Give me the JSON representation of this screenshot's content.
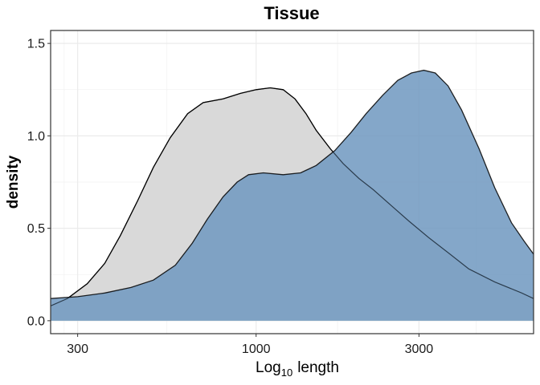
{
  "chart_data": {
    "type": "area",
    "title": "Tissue",
    "xlabel_main": "Log",
    "xlabel_sub": "10",
    "xlabel_rest": "length",
    "ylabel": "density",
    "x_scale": "log10",
    "xlim": [
      250,
      6500
    ],
    "ylim": [
      -0.07,
      1.57
    ],
    "x_ticks": [
      300,
      1000,
      3000
    ],
    "x_tick_labels": [
      "300",
      "1000",
      "3000"
    ],
    "y_ticks": [
      0.0,
      0.5,
      1.0,
      1.5
    ],
    "y_tick_labels": [
      "0.0",
      "0.5",
      "1.0",
      "1.5"
    ],
    "grid": true,
    "series": [
      {
        "fill": "#d9d9d9",
        "fill_opacity": 1,
        "stroke": "#000000",
        "points": [
          [
            250,
            0.08
          ],
          [
            280,
            0.12
          ],
          [
            320,
            0.2
          ],
          [
            360,
            0.31
          ],
          [
            400,
            0.46
          ],
          [
            450,
            0.65
          ],
          [
            500,
            0.83
          ],
          [
            560,
            0.99
          ],
          [
            630,
            1.12
          ],
          [
            700,
            1.18
          ],
          [
            800,
            1.2
          ],
          [
            900,
            1.23
          ],
          [
            1000,
            1.25
          ],
          [
            1100,
            1.26
          ],
          [
            1200,
            1.25
          ],
          [
            1300,
            1.2
          ],
          [
            1400,
            1.12
          ],
          [
            1500,
            1.03
          ],
          [
            1650,
            0.93
          ],
          [
            1800,
            0.85
          ],
          [
            2000,
            0.77
          ],
          [
            2200,
            0.71
          ],
          [
            2500,
            0.62
          ],
          [
            2800,
            0.54
          ],
          [
            3200,
            0.45
          ],
          [
            3700,
            0.36
          ],
          [
            4200,
            0.28
          ],
          [
            5000,
            0.21
          ],
          [
            6000,
            0.15
          ],
          [
            6500,
            0.12
          ]
        ]
      },
      {
        "fill": "#6f98c0",
        "fill_opacity": 0.85,
        "stroke": "#000000",
        "points": [
          [
            250,
            0.12
          ],
          [
            300,
            0.13
          ],
          [
            360,
            0.15
          ],
          [
            430,
            0.18
          ],
          [
            500,
            0.22
          ],
          [
            580,
            0.3
          ],
          [
            650,
            0.42
          ],
          [
            720,
            0.55
          ],
          [
            800,
            0.67
          ],
          [
            880,
            0.75
          ],
          [
            950,
            0.79
          ],
          [
            1050,
            0.8
          ],
          [
            1200,
            0.79
          ],
          [
            1350,
            0.8
          ],
          [
            1500,
            0.84
          ],
          [
            1700,
            0.92
          ],
          [
            1900,
            1.02
          ],
          [
            2100,
            1.12
          ],
          [
            2350,
            1.22
          ],
          [
            2600,
            1.3
          ],
          [
            2850,
            1.34
          ],
          [
            3100,
            1.355
          ],
          [
            3350,
            1.34
          ],
          [
            3650,
            1.27
          ],
          [
            4000,
            1.14
          ],
          [
            4500,
            0.93
          ],
          [
            5000,
            0.72
          ],
          [
            5600,
            0.53
          ],
          [
            6100,
            0.43
          ],
          [
            6500,
            0.36
          ]
        ]
      }
    ]
  }
}
